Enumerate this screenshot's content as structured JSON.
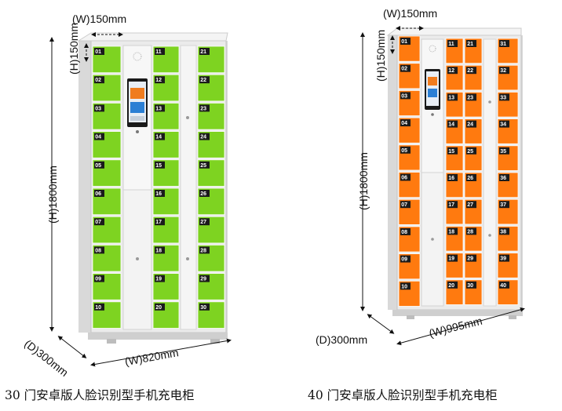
{
  "lockers": [
    {
      "accent": "#7ed321",
      "caption": "30 门安卓版人脸识别型手机充电柜",
      "dims": {
        "width_top": "(W)150mm",
        "height_door": "(H)150mm",
        "height": "(H)1800mm",
        "depth": "(D)300mm",
        "width": "(W)820mm"
      },
      "columns": [
        [
          "01",
          "02",
          "03",
          "04",
          "05",
          "06",
          "07",
          "08",
          "09",
          "10"
        ],
        [
          "11",
          "12",
          "13",
          "14",
          "15",
          "16",
          "17",
          "18",
          "19",
          "20"
        ],
        [
          "21",
          "22",
          "23",
          "24",
          "25",
          "26",
          "27",
          "28",
          "29",
          "30"
        ]
      ]
    },
    {
      "accent": "#ff7a0f",
      "caption": "40 门安卓版人脸识别型手机充电柜",
      "dims": {
        "width_top": "(W)150mm",
        "height_door": "(H)150mm",
        "height": "(H)1800mm",
        "depth": "(D)300mm",
        "width": "(W)995mm"
      },
      "columns": [
        [
          "01",
          "02",
          "03",
          "04",
          "05",
          "06",
          "07",
          "08",
          "09",
          "10"
        ],
        [
          "11",
          "12",
          "13",
          "14",
          "15",
          "16",
          "17",
          "18",
          "19",
          "20"
        ],
        [
          "21",
          "22",
          "23",
          "24",
          "25",
          "26",
          "27",
          "28",
          "29",
          "30"
        ],
        [
          "31",
          "32",
          "33",
          "34",
          "35",
          "36",
          "37",
          "38",
          "39",
          "40"
        ]
      ]
    }
  ]
}
